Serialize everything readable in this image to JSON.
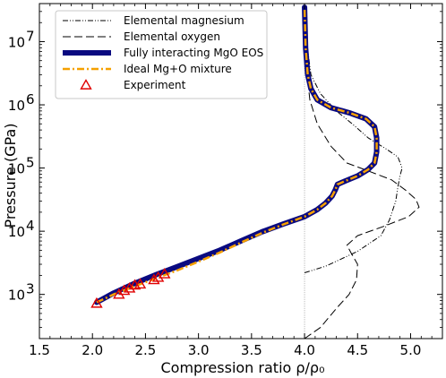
{
  "chart_data": {
    "type": "line",
    "xlabel": "Compression ratio ρ/ρ₀",
    "ylabel": "Pressure (GPa)",
    "xlim": [
      1.5,
      5.3
    ],
    "ylim": [
      200,
      40000000
    ],
    "yscale": "log",
    "x_ticks": [
      1.5,
      2.0,
      2.5,
      3.0,
      3.5,
      4.0,
      4.5,
      5.0
    ],
    "x_tick_labels": [
      "1.5",
      "2.0",
      "2.5",
      "3.0",
      "3.5",
      "4.0",
      "4.5",
      "5.0"
    ],
    "y_ticks": [
      1000,
      10000,
      100000,
      1000000,
      10000000
    ],
    "y_tick_labels": [
      {
        "base": "10",
        "exp": "3"
      },
      {
        "base": "10",
        "exp": "4"
      },
      {
        "base": "10",
        "exp": "5"
      },
      {
        "base": "10",
        "exp": "6"
      },
      {
        "base": "10",
        "exp": "7"
      }
    ],
    "reference_line_x": 4.0,
    "legend_position": "top-left",
    "series": [
      {
        "name": "Elemental magnesium",
        "style": "dashdotdot",
        "color": "#000000",
        "points": [
          [
            4.0,
            2200
          ],
          [
            4.2,
            2800
          ],
          [
            4.5,
            4800
          ],
          [
            4.72,
            8500
          ],
          [
            4.8,
            15000
          ],
          [
            4.86,
            30000
          ],
          [
            4.88,
            50000
          ],
          [
            4.9,
            75000
          ],
          [
            4.92,
            100000
          ],
          [
            4.88,
            150000
          ],
          [
            4.77,
            200000
          ],
          [
            4.6,
            300000
          ],
          [
            4.45,
            500000
          ],
          [
            4.3,
            800000
          ],
          [
            4.15,
            1500000
          ],
          [
            4.06,
            3000000
          ],
          [
            4.02,
            10000000
          ],
          [
            4.0,
            30000000
          ]
        ]
      },
      {
        "name": "Elemental oxygen",
        "style": "longdash",
        "color": "#000000",
        "points": [
          [
            4.0,
            200
          ],
          [
            4.15,
            300
          ],
          [
            4.3,
            600
          ],
          [
            4.42,
            1000
          ],
          [
            4.49,
            1700
          ],
          [
            4.5,
            3000
          ],
          [
            4.44,
            4500
          ],
          [
            4.4,
            6000
          ],
          [
            4.5,
            8500
          ],
          [
            4.75,
            12000
          ],
          [
            4.98,
            17000
          ],
          [
            5.08,
            24000
          ],
          [
            5.05,
            32000
          ],
          [
            4.95,
            45000
          ],
          [
            4.82,
            65000
          ],
          [
            4.6,
            90000
          ],
          [
            4.4,
            120000
          ],
          [
            4.25,
            220000
          ],
          [
            4.12,
            500000
          ],
          [
            4.05,
            1200000
          ],
          [
            4.01,
            5000000
          ],
          [
            4.0,
            30000000
          ]
        ]
      },
      {
        "name": "Fully interacting MgO EOS",
        "style": "thick",
        "color": "#0a0a80",
        "points": [
          [
            2.04,
            750
          ],
          [
            2.2,
            1050
          ],
          [
            2.4,
            1500
          ],
          [
            2.6,
            2050
          ],
          [
            2.8,
            2750
          ],
          [
            3.0,
            3700
          ],
          [
            3.2,
            5000
          ],
          [
            3.4,
            7000
          ],
          [
            3.6,
            9800
          ],
          [
            3.8,
            13000
          ],
          [
            4.0,
            17000
          ],
          [
            4.12,
            22000
          ],
          [
            4.2,
            28000
          ],
          [
            4.26,
            36000
          ],
          [
            4.29,
            45000
          ],
          [
            4.31,
            55000
          ],
          [
            4.38,
            62000
          ],
          [
            4.5,
            75000
          ],
          [
            4.6,
            95000
          ],
          [
            4.66,
            120000
          ],
          [
            4.68,
            180000
          ],
          [
            4.68,
            300000
          ],
          [
            4.66,
            450000
          ],
          [
            4.58,
            600000
          ],
          [
            4.42,
            750000
          ],
          [
            4.25,
            900000
          ],
          [
            4.12,
            1200000
          ],
          [
            4.06,
            1800000
          ],
          [
            4.03,
            3000000
          ],
          [
            4.01,
            8000000
          ],
          [
            4.0,
            35000000
          ]
        ]
      },
      {
        "name": "Ideal Mg+O mixture",
        "style": "dashdot",
        "color": "#f5a000",
        "points": [
          [
            2.04,
            750
          ],
          [
            2.2,
            1000
          ],
          [
            2.4,
            1350
          ],
          [
            2.6,
            1800
          ],
          [
            2.8,
            2400
          ],
          [
            3.0,
            3300
          ],
          [
            3.2,
            4600
          ],
          [
            3.4,
            6600
          ],
          [
            3.6,
            9400
          ],
          [
            3.8,
            12800
          ],
          [
            4.0,
            17000
          ],
          [
            4.12,
            22000
          ],
          [
            4.2,
            28000
          ],
          [
            4.26,
            36000
          ],
          [
            4.29,
            45000
          ],
          [
            4.31,
            55000
          ],
          [
            4.38,
            62000
          ],
          [
            4.5,
            75000
          ],
          [
            4.6,
            95000
          ],
          [
            4.66,
            120000
          ],
          [
            4.68,
            180000
          ],
          [
            4.68,
            300000
          ],
          [
            4.66,
            450000
          ],
          [
            4.58,
            600000
          ],
          [
            4.42,
            750000
          ],
          [
            4.25,
            900000
          ],
          [
            4.12,
            1200000
          ],
          [
            4.06,
            1800000
          ],
          [
            4.03,
            3000000
          ],
          [
            4.01,
            8000000
          ],
          [
            4.0,
            35000000
          ]
        ]
      },
      {
        "name": "Experiment",
        "style": "triangle-marker",
        "color": "#e00000",
        "points": [
          [
            2.04,
            720
          ],
          [
            2.25,
            1000
          ],
          [
            2.3,
            1150
          ],
          [
            2.35,
            1250
          ],
          [
            2.4,
            1400
          ],
          [
            2.45,
            1450
          ],
          [
            2.58,
            1700
          ],
          [
            2.62,
            1850
          ],
          [
            2.68,
            2100
          ]
        ]
      }
    ]
  },
  "colors": {
    "mgo": "#0a0a80",
    "ideal": "#f5a000",
    "experiment": "#e00000",
    "elemental": "#000000",
    "reference": "#aaaaaa"
  }
}
